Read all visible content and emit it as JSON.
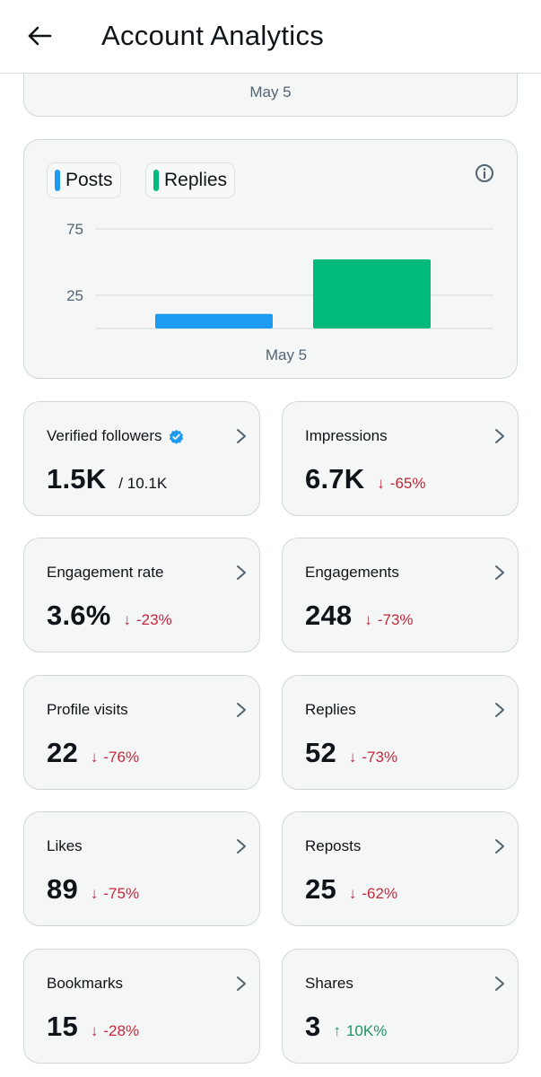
{
  "header": {
    "title": "Account Analytics",
    "back_icon": "arrow-left-icon"
  },
  "top_card": {
    "date": "May 5"
  },
  "chart": {
    "legend": [
      {
        "label": "Posts",
        "color": "#1d9bf0"
      },
      {
        "label": "Replies",
        "color": "#00ba7c"
      }
    ],
    "info_icon": "info-icon"
  },
  "chart_data": {
    "type": "bar",
    "categories": [
      "May 5"
    ],
    "series": [
      {
        "name": "Posts",
        "values": [
          11
        ],
        "color": "#1d9bf0"
      },
      {
        "name": "Replies",
        "values": [
          52
        ],
        "color": "#00ba7c"
      }
    ],
    "yticks": [
      75,
      25
    ],
    "ylim": [
      0,
      85
    ],
    "grid": true,
    "legend_position": "top-left"
  },
  "stats": [
    {
      "title": "Verified followers",
      "value": "1.5K",
      "sub": "/ 10.1K",
      "verified": true
    },
    {
      "title": "Impressions",
      "value": "6.7K",
      "change": "-65%",
      "direction": "down"
    },
    {
      "title": "Engagement rate",
      "value": "3.6%",
      "change": "-23%",
      "direction": "down"
    },
    {
      "title": "Engagements",
      "value": "248",
      "change": "-73%",
      "direction": "down"
    },
    {
      "title": "Profile visits",
      "value": "22",
      "change": "-76%",
      "direction": "down"
    },
    {
      "title": "Replies",
      "value": "52",
      "change": "-73%",
      "direction": "down"
    },
    {
      "title": "Likes",
      "value": "89",
      "change": "-75%",
      "direction": "down"
    },
    {
      "title": "Reposts",
      "value": "25",
      "change": "-62%",
      "direction": "down"
    },
    {
      "title": "Bookmarks",
      "value": "15",
      "change": "-28%",
      "direction": "down"
    },
    {
      "title": "Shares",
      "value": "3",
      "change": "10K%",
      "direction": "up"
    }
  ],
  "colors": {
    "down": "#c4283a",
    "up": "#1a9660",
    "verified": "#1d9bf0"
  }
}
